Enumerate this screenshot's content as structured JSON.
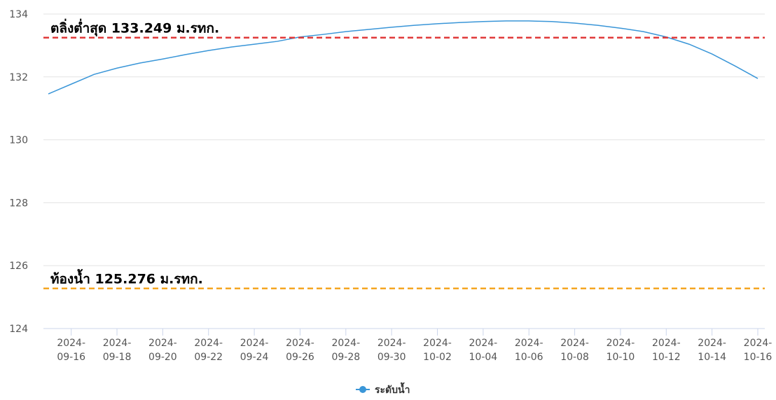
{
  "chart_data": {
    "type": "line",
    "x": [
      "2024-09-15",
      "2024-09-16",
      "2024-09-17",
      "2024-09-18",
      "2024-09-19",
      "2024-09-20",
      "2024-09-21",
      "2024-09-22",
      "2024-09-23",
      "2024-09-24",
      "2024-09-25",
      "2024-09-26",
      "2024-09-27",
      "2024-09-28",
      "2024-09-29",
      "2024-09-30",
      "2024-10-01",
      "2024-10-02",
      "2024-10-03",
      "2024-10-04",
      "2024-10-05",
      "2024-10-06",
      "2024-10-07",
      "2024-10-08",
      "2024-10-09",
      "2024-10-10",
      "2024-10-11",
      "2024-10-12",
      "2024-10-13",
      "2024-10-14",
      "2024-10-15",
      "2024-10-16"
    ],
    "series": [
      {
        "name": "ระดับน้ำ",
        "color": "#3a96d8",
        "values": [
          131.46,
          131.77,
          132.08,
          132.28,
          132.44,
          132.57,
          132.71,
          132.84,
          132.95,
          133.04,
          133.13,
          133.27,
          133.35,
          133.44,
          133.51,
          133.58,
          133.64,
          133.69,
          133.73,
          133.76,
          133.78,
          133.78,
          133.76,
          133.71,
          133.64,
          133.55,
          133.44,
          133.27,
          133.04,
          132.73,
          132.35,
          131.95
        ]
      }
    ],
    "ylim": [
      124,
      134
    ],
    "yticks": [
      124,
      126,
      128,
      130,
      132,
      134
    ],
    "grid": true,
    "reference_lines": [
      {
        "value": 133.249,
        "label": "ตลิ่งต่ำสุด 133.249 ม.รทก.",
        "color": "#e03a3a"
      },
      {
        "value": 125.276,
        "label": "ท้องน้ำ 125.276 ม.รทก.",
        "color": "#f5a623"
      }
    ],
    "legend": "bottom"
  }
}
